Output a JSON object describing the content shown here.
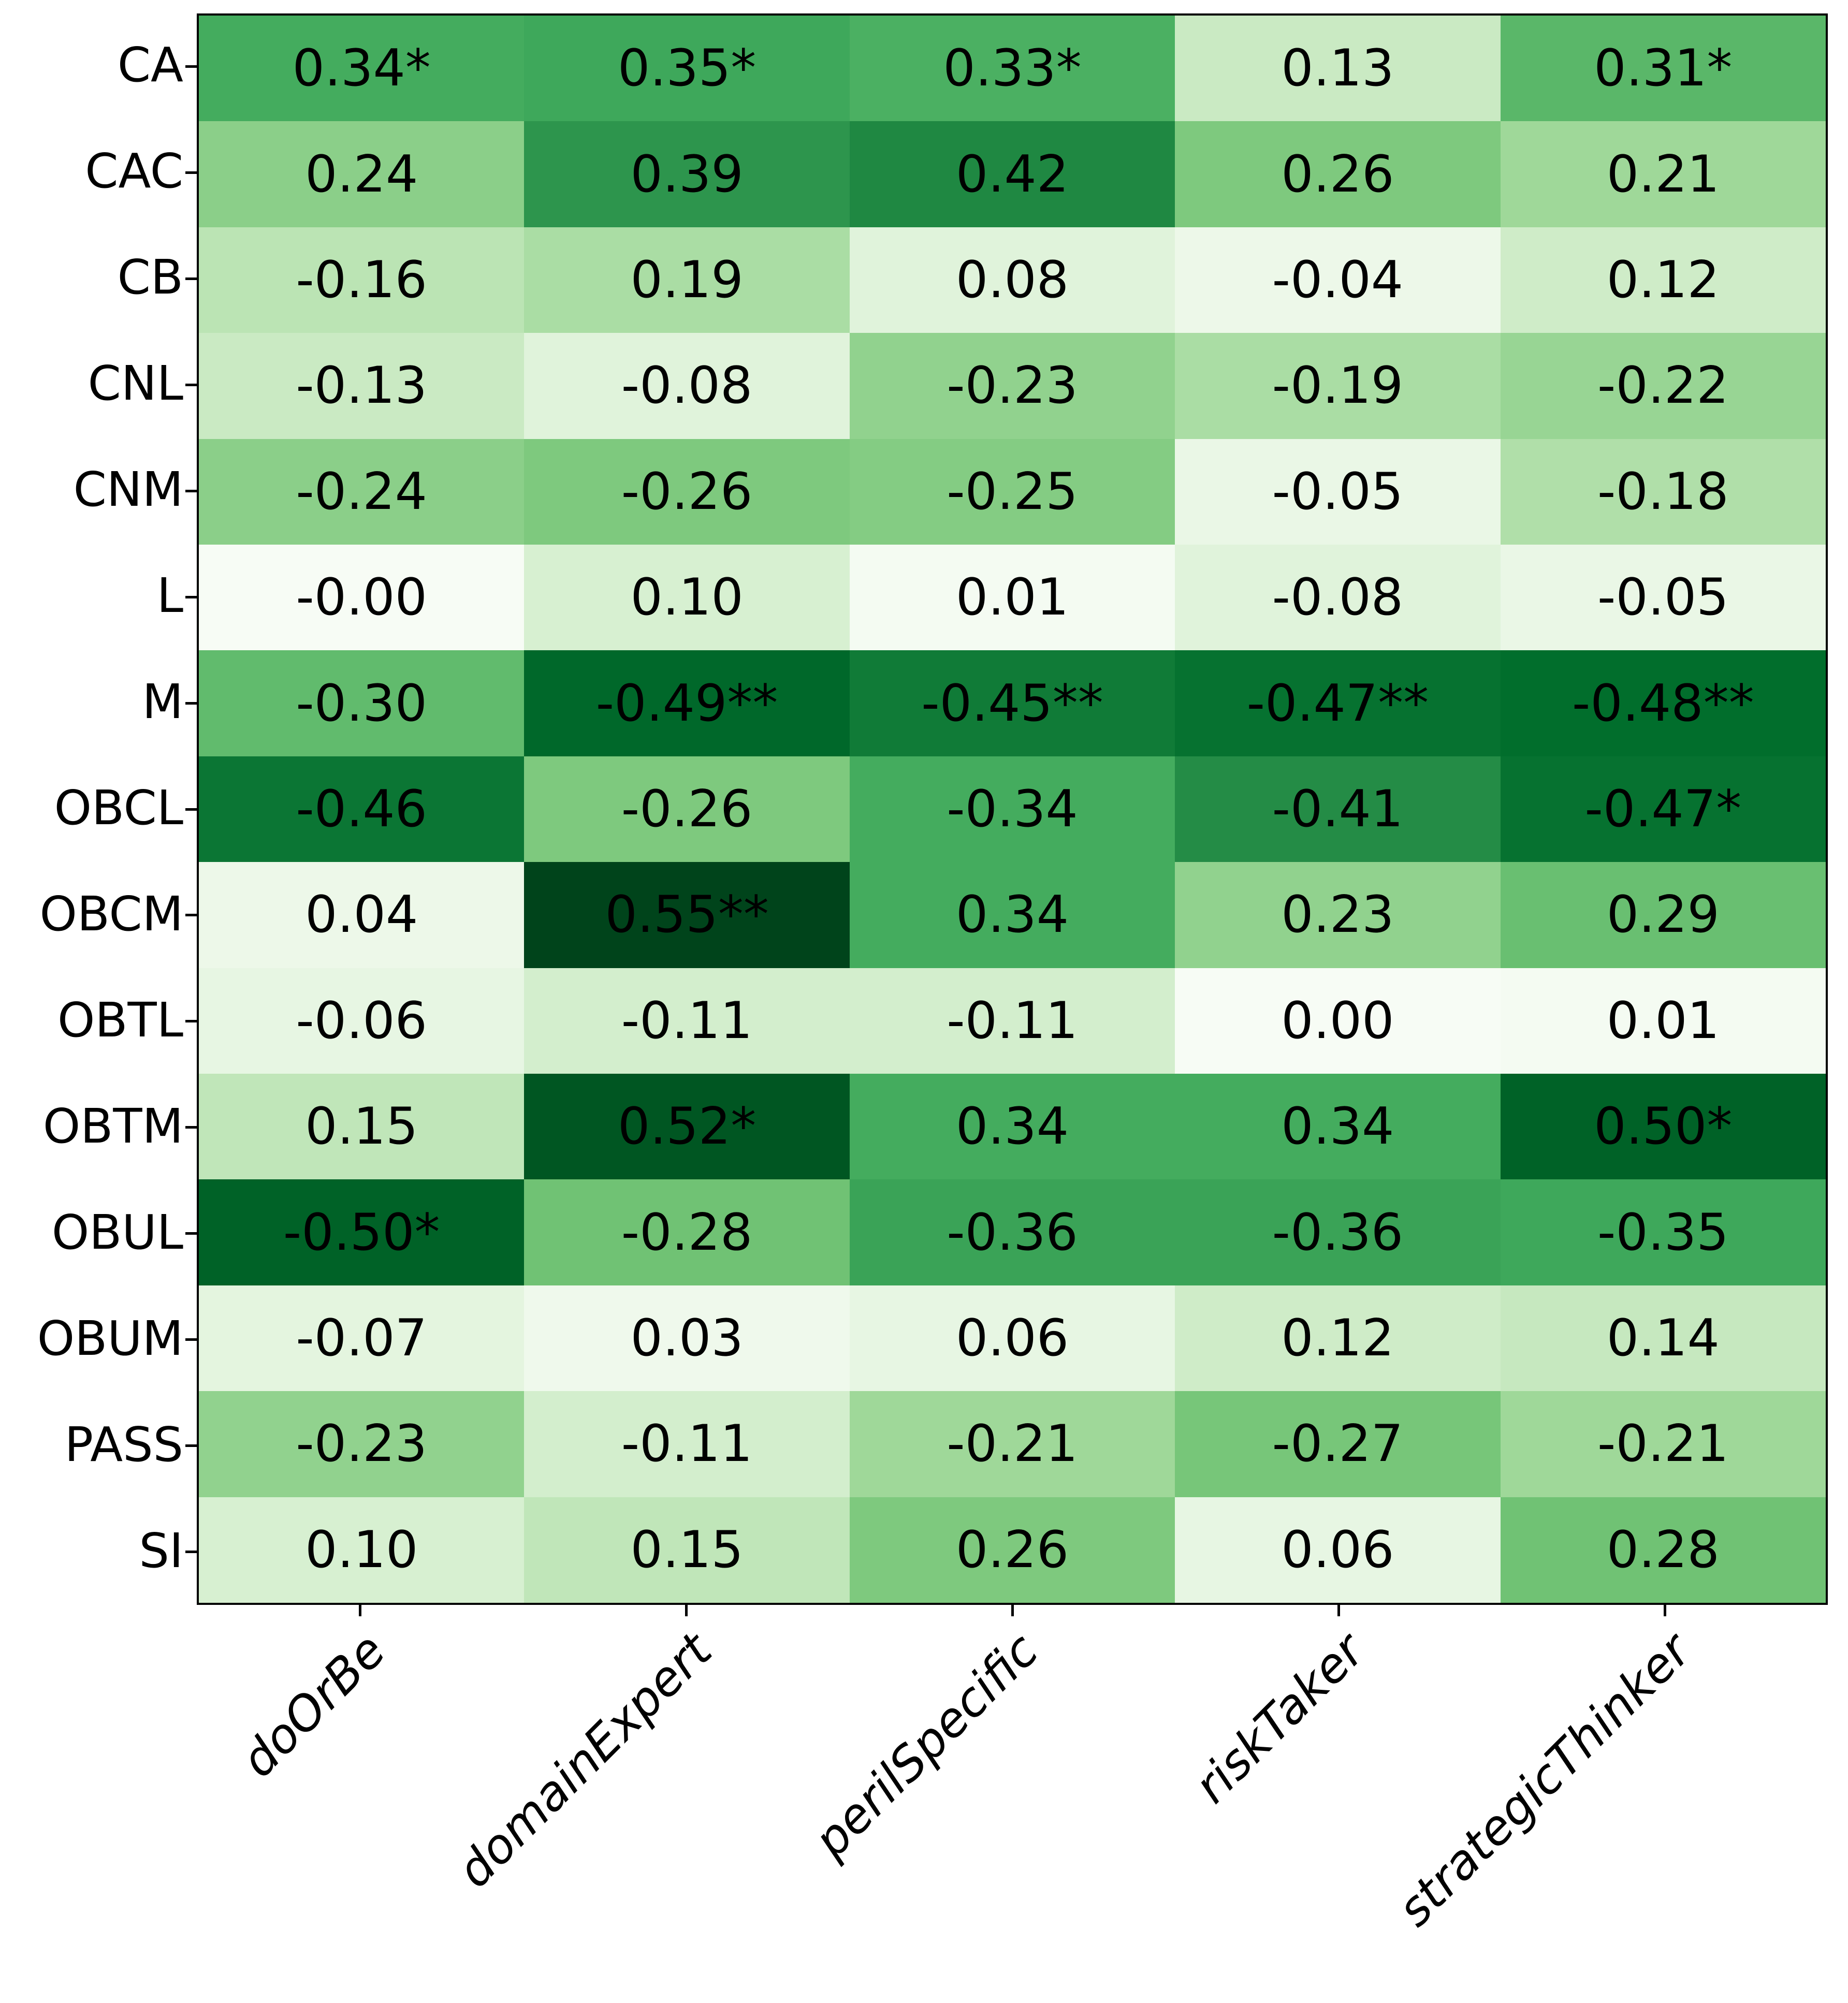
{
  "figure": {
    "background": "#ffffff",
    "axes_border_color": "#000000",
    "tick_color": "#000000",
    "label_color": "#000000"
  },
  "chart_data": {
    "type": "heatmap",
    "title": "",
    "xlabel": "",
    "ylabel": "",
    "rows": [
      "CA",
      "CAC",
      "CB",
      "CNL",
      "CNM",
      "L",
      "M",
      "OBCL",
      "OBCM",
      "OBTL",
      "OBTM",
      "OBUL",
      "OBUM",
      "PASS",
      "SI"
    ],
    "columns": [
      "doOrBe",
      "domainExpert",
      "perilSpecific",
      "riskTaker",
      "strategicThinker"
    ],
    "cells": [
      [
        "0.34*",
        "0.35*",
        "0.33*",
        "0.13",
        "0.31*"
      ],
      [
        "0.24",
        "0.39",
        "0.42",
        "0.26",
        "0.21"
      ],
      [
        "-0.16",
        "0.19",
        "0.08",
        "-0.04",
        "0.12"
      ],
      [
        "-0.13",
        "-0.08",
        "-0.23",
        "-0.19",
        "-0.22"
      ],
      [
        "-0.24",
        "-0.26",
        "-0.25",
        "-0.05",
        "-0.18"
      ],
      [
        "-0.00",
        "0.10",
        "0.01",
        "-0.08",
        "-0.05"
      ],
      [
        "-0.30",
        "-0.49**",
        "-0.45**",
        "-0.47**",
        "-0.48**"
      ],
      [
        "-0.46",
        "-0.26",
        "-0.34",
        "-0.41",
        "-0.47*"
      ],
      [
        "0.04",
        "0.55**",
        "0.34",
        "0.23",
        "0.29"
      ],
      [
        "-0.06",
        "-0.11",
        "-0.11",
        "0.00",
        "0.01"
      ],
      [
        "0.15",
        "0.52*",
        "0.34",
        "0.34",
        "0.50*"
      ],
      [
        "-0.50*",
        "-0.28",
        "-0.36",
        "-0.36",
        "-0.35"
      ],
      [
        "-0.07",
        "0.03",
        "0.06",
        "0.12",
        "0.14"
      ],
      [
        "-0.23",
        "-0.11",
        "-0.21",
        "-0.27",
        "-0.21"
      ],
      [
        "0.10",
        "0.15",
        "0.26",
        "0.06",
        "0.28"
      ]
    ],
    "annotation_text_color": "#000000",
    "colormap": {
      "name": "Greens",
      "mapped_on": "absolute value",
      "vmin": 0,
      "vmax": 0.55,
      "anchors": [
        "#f7fcf5",
        "#e5f5e0",
        "#c7e9c0",
        "#a1d99b",
        "#74c476",
        "#41ab5d",
        "#238b45",
        "#006d2c",
        "#00441b"
      ]
    },
    "legend_position": "none",
    "grid": "off",
    "x_tick_rotation_deg": 45,
    "x_tick_style": "italic"
  }
}
